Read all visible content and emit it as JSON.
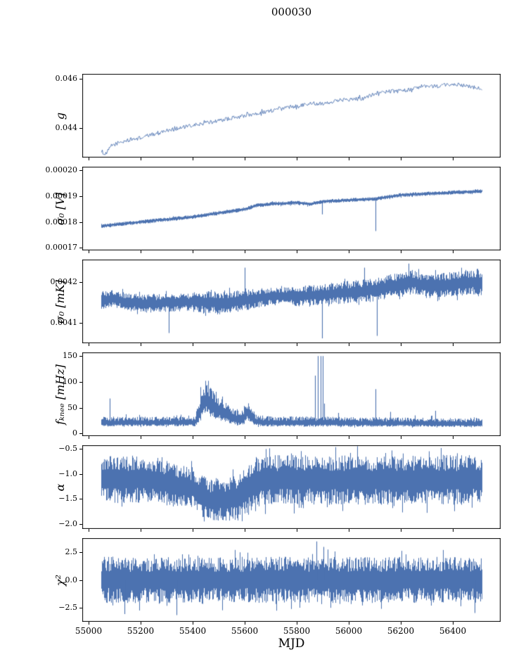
{
  "title": "000030",
  "xlabel": "MJD",
  "colors": {
    "line": "#4c72b0",
    "spine": "#000000",
    "text": "#000000",
    "background": "#ffffff"
  },
  "chart_data": {
    "type": "line",
    "title": "000030",
    "xlabel": "MJD",
    "xlim": [
      54977,
      56583
    ],
    "x_range": [
      55050,
      56510
    ],
    "xticks": {
      "values": [
        55000,
        55200,
        55400,
        55600,
        55800,
        56000,
        56200,
        56400
      ],
      "labels": [
        "55000",
        "55200",
        "55400",
        "55600",
        "55800",
        "56000",
        "56200",
        "56400"
      ]
    },
    "panels": [
      {
        "name": "g",
        "ylabel": "g",
        "ylim": [
          0.0428,
          0.0462
        ],
        "yticks": {
          "values": [
            0.044,
            0.046
          ],
          "labels": [
            "0.044",
            "0.046"
          ]
        },
        "style": "line",
        "noise": 8e-05,
        "trend": [
          [
            55050,
            0.0431
          ],
          [
            55065,
            0.0429
          ],
          [
            55090,
            0.0433
          ],
          [
            55150,
            0.0435
          ],
          [
            55200,
            0.0436
          ],
          [
            55300,
            0.0439
          ],
          [
            55400,
            0.0441
          ],
          [
            55450,
            0.0442
          ],
          [
            55500,
            0.0443
          ],
          [
            55600,
            0.0445
          ],
          [
            55700,
            0.0447
          ],
          [
            55750,
            0.0448
          ],
          [
            55800,
            0.0449
          ],
          [
            55850,
            0.045
          ],
          [
            55900,
            0.045
          ],
          [
            55950,
            0.0451
          ],
          [
            56000,
            0.0452
          ],
          [
            56050,
            0.0452
          ],
          [
            56100,
            0.0454
          ],
          [
            56150,
            0.0455
          ],
          [
            56200,
            0.0455
          ],
          [
            56250,
            0.0456
          ],
          [
            56300,
            0.0457
          ],
          [
            56350,
            0.0457
          ],
          [
            56400,
            0.0458
          ],
          [
            56450,
            0.0457
          ],
          [
            56510,
            0.0456
          ]
        ]
      },
      {
        "name": "sigma0-V",
        "ylabel": "σ₀ [V]",
        "ylim": [
          0.000169,
          0.0002015
        ],
        "yticks": {
          "values": [
            0.00017,
            0.00018,
            0.00019,
            0.0002
          ],
          "labels": [
            "0.00017",
            "0.00018",
            "0.00019",
            "0.00020"
          ]
        },
        "style": "band",
        "noise": 8e-07,
        "trend": [
          [
            55050,
            0.0001785
          ],
          [
            55100,
            0.000179
          ],
          [
            55200,
            0.00018
          ],
          [
            55300,
            0.000181
          ],
          [
            55400,
            0.000182
          ],
          [
            55500,
            0.0001835
          ],
          [
            55600,
            0.000185
          ],
          [
            55650,
            0.0001865
          ],
          [
            55700,
            0.000187
          ],
          [
            55800,
            0.0001875
          ],
          [
            55850,
            0.000187
          ],
          [
            55900,
            0.000188
          ],
          [
            56000,
            0.0001885
          ],
          [
            56100,
            0.000189
          ],
          [
            56200,
            0.0001905
          ],
          [
            56300,
            0.000191
          ],
          [
            56400,
            0.0001915
          ],
          [
            56510,
            0.000192
          ]
        ],
        "spikes_down": [
          [
            55898,
            0.000183
          ],
          [
            56103,
            0.0001765
          ]
        ]
      },
      {
        "name": "sigma0-mK",
        "ylabel": "σ₀ [mK]",
        "ylim": [
          0.00405,
          0.004255
        ],
        "yticks": {
          "values": [
            0.0041,
            0.0042
          ],
          "labels": [
            "0.0041",
            "0.0042"
          ]
        },
        "style": "band",
        "noise": [
          [
            55050,
            2.2e-05
          ],
          [
            55400,
            2.2e-05
          ],
          [
            55450,
            3e-05
          ],
          [
            55700,
            2.2e-05
          ],
          [
            56000,
            2.8e-05
          ],
          [
            56200,
            3e-05
          ],
          [
            56510,
            3e-05
          ]
        ],
        "trend": [
          [
            55050,
            0.004155
          ],
          [
            55100,
            0.00416
          ],
          [
            55150,
            0.00415
          ],
          [
            55250,
            0.004148
          ],
          [
            55350,
            0.00415
          ],
          [
            55420,
            0.004152
          ],
          [
            55500,
            0.004148
          ],
          [
            55600,
            0.004155
          ],
          [
            55700,
            0.004165
          ],
          [
            55800,
            0.004165
          ],
          [
            55900,
            0.00417
          ],
          [
            56000,
            0.004175
          ],
          [
            56100,
            0.00418
          ],
          [
            56200,
            0.004195
          ],
          [
            56250,
            0.0042
          ],
          [
            56300,
            0.00419
          ],
          [
            56400,
            0.004195
          ],
          [
            56510,
            0.0042
          ]
        ],
        "spikes_down": [
          [
            55310,
            0.004075
          ],
          [
            55898,
            0.004062
          ],
          [
            56108,
            0.004068
          ]
        ],
        "spikes_up": [
          [
            55600,
            0.004235
          ],
          [
            56060,
            0.004235
          ],
          [
            56230,
            0.004245
          ]
        ]
      },
      {
        "name": "fknee",
        "ylabel": "fₖₙₑₑ [mHz]",
        "ylim": [
          -5,
          157
        ],
        "yticks": {
          "values": [
            0,
            50,
            100,
            150
          ],
          "labels": [
            "0",
            "50",
            "100",
            "150"
          ]
        },
        "style": "band",
        "up_bias": 1.6,
        "down_bias": 0.75,
        "noise": [
          [
            55050,
            8
          ],
          [
            55410,
            8
          ],
          [
            55440,
            28
          ],
          [
            55470,
            26
          ],
          [
            55520,
            18
          ],
          [
            55560,
            12
          ],
          [
            55610,
            16
          ],
          [
            55650,
            9
          ],
          [
            56510,
            7
          ]
        ],
        "trend": [
          [
            55050,
            20
          ],
          [
            55410,
            20
          ],
          [
            55425,
            35
          ],
          [
            55440,
            55
          ],
          [
            55455,
            60
          ],
          [
            55470,
            52
          ],
          [
            55490,
            45
          ],
          [
            55515,
            38
          ],
          [
            55545,
            30
          ],
          [
            55575,
            25
          ],
          [
            55595,
            28
          ],
          [
            55610,
            38
          ],
          [
            55625,
            30
          ],
          [
            55645,
            22
          ],
          [
            55680,
            20
          ],
          [
            56510,
            18
          ]
        ],
        "spikes_up": [
          [
            55083,
            68
          ],
          [
            55870,
            112
          ],
          [
            55882,
            150
          ],
          [
            55891,
            150
          ],
          [
            55899,
            150
          ],
          [
            55906,
            58
          ],
          [
            55960,
            40
          ],
          [
            56103,
            86
          ],
          [
            56160,
            42
          ],
          [
            56255,
            35
          ],
          [
            56332,
            44
          ]
        ]
      },
      {
        "name": "alpha",
        "ylabel": "α",
        "ylim": [
          -2.1,
          -0.43
        ],
        "yticks": {
          "values": [
            -2.0,
            -1.5,
            -1.0,
            -0.5
          ],
          "labels": [
            "−2.0",
            "−1.5",
            "−1.0",
            "−0.5"
          ]
        },
        "style": "band",
        "noise": [
          [
            55050,
            0.5
          ],
          [
            55300,
            0.45
          ],
          [
            55420,
            0.42
          ],
          [
            55560,
            0.45
          ],
          [
            55620,
            0.52
          ],
          [
            55700,
            0.5
          ],
          [
            56510,
            0.5
          ]
        ],
        "trend": [
          [
            55050,
            -1.1
          ],
          [
            55260,
            -1.12
          ],
          [
            55330,
            -1.22
          ],
          [
            55400,
            -1.28
          ],
          [
            55430,
            -1.42
          ],
          [
            55470,
            -1.52
          ],
          [
            55540,
            -1.52
          ],
          [
            55575,
            -1.45
          ],
          [
            55610,
            -1.28
          ],
          [
            55650,
            -1.15
          ],
          [
            55720,
            -1.12
          ],
          [
            56510,
            -1.12
          ]
        ]
      },
      {
        "name": "chi2",
        "ylabel": "χ²",
        "ylim": [
          -3.8,
          3.8
        ],
        "yticks": {
          "values": [
            -2.5,
            0.0,
            2.5
          ],
          "labels": [
            "−2.5",
            "0.0",
            "2.5"
          ]
        },
        "style": "band",
        "noise": [
          [
            55050,
            2.1
          ],
          [
            56510,
            2.1
          ]
        ],
        "trend": [
          [
            55050,
            0
          ],
          [
            56510,
            0
          ]
        ],
        "spikes_up": [
          [
            55877,
            3.5
          ],
          [
            55904,
            3.0
          ]
        ],
        "spikes_down": [
          [
            55140,
            -3.1
          ],
          [
            55338,
            -3.2
          ],
          [
            56482,
            -3.0
          ]
        ]
      }
    ]
  }
}
